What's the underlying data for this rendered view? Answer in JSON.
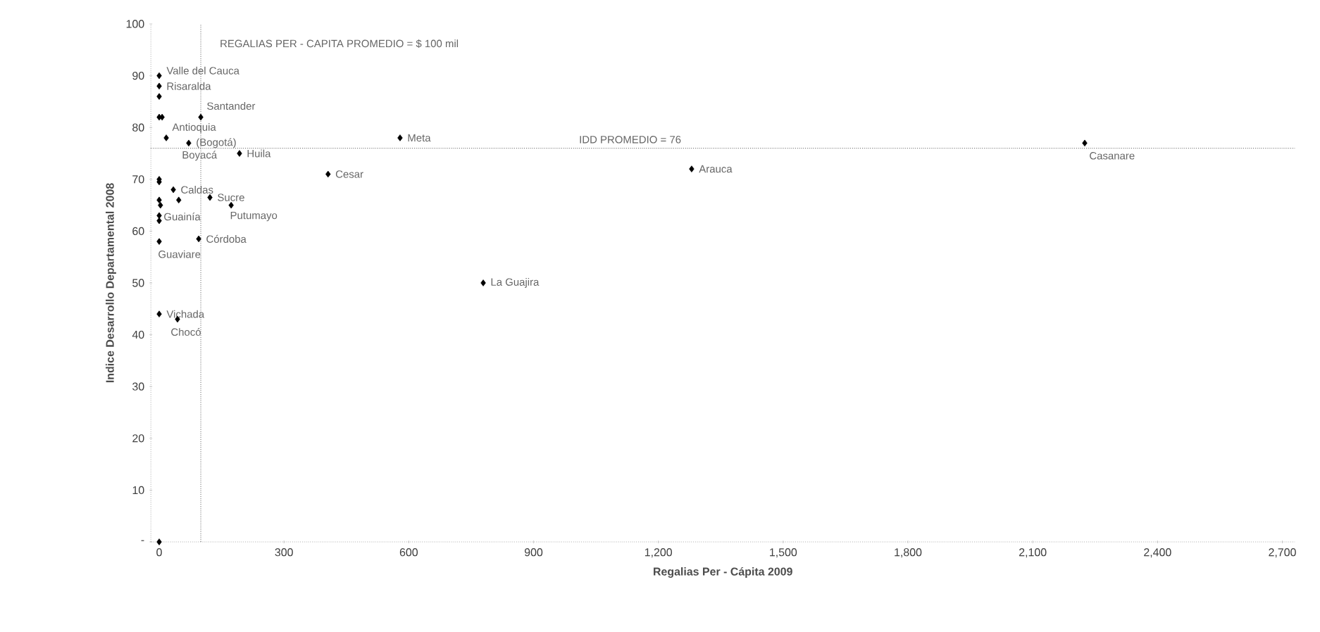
{
  "chart_data": {
    "type": "scatter",
    "xlabel": "Regalias Per - Cápita 2009",
    "ylabel": "Indice Desarrollo Departamental 2008",
    "xlim": [
      -20,
      2730
    ],
    "ylim": [
      0,
      100
    ],
    "xticks": [
      0,
      300,
      600,
      900,
      {
        "value": 1200,
        "label": "1,200"
      },
      {
        "value": 1500,
        "label": "1,500"
      },
      {
        "value": 1800,
        "label": "1,800"
      },
      {
        "value": 2100,
        "label": "2,100"
      },
      {
        "value": 2400,
        "label": "2,400"
      },
      {
        "value": 2700,
        "label": "2,700"
      }
    ],
    "yticks": [
      {
        "value": 0,
        "label": "-"
      },
      10,
      20,
      30,
      40,
      50,
      60,
      70,
      80,
      90,
      100
    ],
    "marker": "diamond",
    "series": [
      {
        "color": "#000000",
        "x": [
          0,
          0,
          0,
          100,
          0,
          7,
          17,
          71,
          193,
          579,
          406,
          0,
          0,
          34,
          47,
          0,
          3,
          122,
          173,
          0,
          0,
          0,
          95,
          779,
          0,
          44,
          1280,
          2225,
          0
        ],
        "values": [
          90,
          88,
          86,
          82,
          82,
          82,
          78,
          77,
          75,
          78,
          71,
          70,
          69.5,
          68,
          66,
          66,
          65,
          66.5,
          65,
          63,
          62,
          58,
          58.5,
          50,
          44,
          43,
          72,
          77,
          0
        ]
      }
    ],
    "ref_lines": [
      {
        "axis": "x",
        "value": 100,
        "label": "REGALIAS PER - CAPITA PROMEDIO = $ 100 mil",
        "color": "#000000",
        "line_style": "dotted"
      },
      {
        "axis": "y",
        "value": 76,
        "label": "IDD PROMEDIO = 76",
        "color": "#000000",
        "line_style": "dotted"
      }
    ],
    "annotations": [
      {
        "text": "Valle del Cauca",
        "x": 0,
        "y": 91
      },
      {
        "text": "Risaralda",
        "x": 0,
        "y": 88
      },
      {
        "text": "Santander",
        "x": 100,
        "y": 82
      },
      {
        "text": "Antioquia",
        "x": 17,
        "y": 78
      },
      {
        "text": "(Bogotá)",
        "x": 71,
        "y": 77
      },
      {
        "text": "Boyacá",
        "x": 71,
        "y": 77
      },
      {
        "text": "Huila",
        "x": 193,
        "y": 75
      },
      {
        "text": "Meta",
        "x": 579,
        "y": 78
      },
      {
        "text": "Cesar",
        "x": 406,
        "y": 71
      },
      {
        "text": "Caldas",
        "x": 34,
        "y": 68
      },
      {
        "text": "Sucre",
        "x": 122,
        "y": 66.5
      },
      {
        "text": "Putumayo",
        "x": 173,
        "y": 65
      },
      {
        "text": "Guainía",
        "x": 0,
        "y": 62
      },
      {
        "text": "Córdoba",
        "x": 95,
        "y": 58.5
      },
      {
        "text": "Guaviare",
        "x": 0,
        "y": 58
      },
      {
        "text": "La Guajira",
        "x": 779,
        "y": 50
      },
      {
        "text": "Vichada",
        "x": 0,
        "y": 44
      },
      {
        "text": "Chocó",
        "x": 44,
        "y": 43
      },
      {
        "text": "Arauca",
        "x": 1280,
        "y": 72
      },
      {
        "text": "Casanare",
        "x": 2225,
        "y": 77
      }
    ]
  }
}
